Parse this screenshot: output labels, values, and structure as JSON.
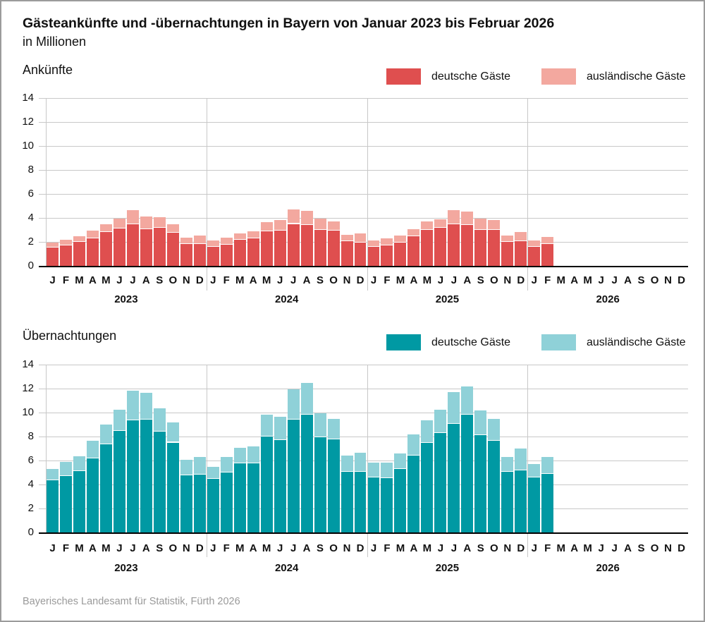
{
  "header": {
    "title": "Gästeankünfte und -übernachtungen in Bayern von Januar 2023 bis Februar 2026",
    "subtitle": "in Millionen"
  },
  "footer": {
    "source": "Bayerisches Landesamt für Statistik, Fürth 2026"
  },
  "style_colors": {
    "frame_border": "#9b9b9b",
    "gridline": "#c8c8c8",
    "axis": "#000000",
    "footer_text": "#9a9a9a"
  },
  "chart_data": [
    {
      "type": "bar",
      "stacked": true,
      "title": "Ankünfte",
      "unit": "Millionen",
      "ylim": [
        0,
        14
      ],
      "yticks": [
        0,
        2,
        4,
        6,
        8,
        10,
        12,
        14
      ],
      "grid": true,
      "legend_position": "top-right",
      "x_years": [
        "2023",
        "2024",
        "2025",
        "2026"
      ],
      "month_letters": [
        "J",
        "F",
        "M",
        "A",
        "M",
        "J",
        "J",
        "A",
        "S",
        "O",
        "N",
        "D"
      ],
      "series": [
        {
          "name": "deutsche Gäste",
          "color": "#df4f4f",
          "values": [
            1.55,
            1.7,
            2.0,
            2.3,
            2.8,
            3.1,
            3.45,
            3.05,
            3.15,
            2.75,
            1.85,
            1.85,
            1.6,
            1.75,
            2.2,
            2.3,
            2.9,
            2.95,
            3.5,
            3.4,
            3.0,
            2.95,
            2.05,
            1.95,
            1.6,
            1.7,
            1.95,
            2.45,
            3.0,
            3.15,
            3.45,
            3.4,
            3.0,
            3.0,
            2.0,
            2.05,
            1.6,
            1.8,
            null,
            null,
            null,
            null,
            null,
            null,
            null,
            null,
            null,
            null
          ]
        },
        {
          "name": "ausländische Gäste",
          "color": "#f3a89f",
          "values": [
            0.4,
            0.5,
            0.45,
            0.65,
            0.7,
            0.85,
            1.2,
            1.05,
            0.9,
            0.7,
            0.5,
            0.7,
            0.5,
            0.6,
            0.5,
            0.6,
            0.75,
            0.9,
            1.2,
            1.2,
            0.95,
            0.75,
            0.55,
            0.75,
            0.5,
            0.6,
            0.6,
            0.6,
            0.7,
            0.75,
            1.2,
            1.15,
            0.95,
            0.85,
            0.55,
            0.8,
            0.5,
            0.6,
            null,
            null,
            null,
            null,
            null,
            null,
            null,
            null,
            null,
            null
          ]
        }
      ]
    },
    {
      "type": "bar",
      "stacked": true,
      "title": "Übernachtungen",
      "unit": "Millionen",
      "ylim": [
        0,
        14
      ],
      "yticks": [
        0,
        2,
        4,
        6,
        8,
        10,
        12,
        14
      ],
      "grid": true,
      "legend_position": "top-right",
      "x_years": [
        "2023",
        "2024",
        "2025",
        "2026"
      ],
      "month_letters": [
        "J",
        "F",
        "M",
        "A",
        "M",
        "J",
        "J",
        "A",
        "S",
        "O",
        "N",
        "D"
      ],
      "series": [
        {
          "name": "deutsche Gäste",
          "color": "#0099a3",
          "values": [
            4.35,
            4.7,
            5.1,
            6.2,
            7.35,
            8.45,
            9.35,
            9.4,
            8.4,
            7.5,
            4.75,
            4.8,
            4.45,
            5.0,
            5.75,
            5.75,
            8.0,
            7.7,
            9.4,
            9.8,
            7.95,
            7.75,
            5.05,
            5.05,
            4.6,
            4.55,
            5.3,
            6.4,
            7.45,
            8.3,
            9.05,
            9.85,
            8.1,
            7.65,
            5.05,
            5.2,
            4.6,
            4.9,
            null,
            null,
            null,
            null,
            null,
            null,
            null,
            null,
            null,
            null
          ]
        },
        {
          "name": "ausländische Gäste",
          "color": "#8fd1d8",
          "values": [
            0.95,
            1.2,
            1.25,
            1.45,
            1.65,
            1.8,
            2.5,
            2.25,
            1.95,
            1.7,
            1.3,
            1.5,
            1.05,
            1.3,
            1.3,
            1.45,
            1.8,
            1.95,
            2.55,
            2.65,
            2.0,
            1.7,
            1.35,
            1.6,
            1.2,
            1.3,
            1.3,
            1.8,
            1.9,
            1.95,
            2.65,
            2.35,
            2.1,
            1.85,
            1.25,
            1.8,
            1.1,
            1.4,
            null,
            null,
            null,
            null,
            null,
            null,
            null,
            null,
            null,
            null
          ]
        }
      ]
    }
  ]
}
